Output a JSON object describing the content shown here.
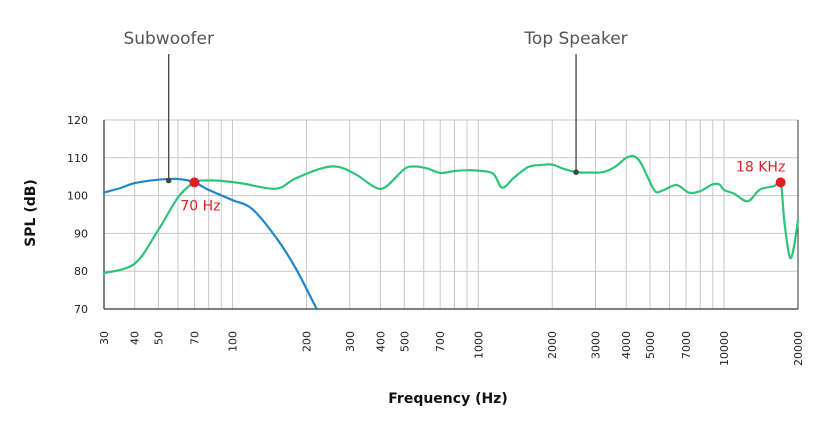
{
  "chart_data": {
    "type": "line",
    "xscale": "log",
    "xlabel": "Frequency (Hz)",
    "ylabel": "SPL (dB)",
    "xlim": [
      30,
      20000
    ],
    "ylim": [
      70,
      120
    ],
    "grid": true,
    "yticks": [
      70,
      80,
      90,
      100,
      110,
      120
    ],
    "xtick_labels": [
      "30",
      "40",
      "50",
      "70",
      "100",
      "200",
      "300",
      "400",
      "500",
      "700",
      "1000",
      "2000",
      "3000",
      "4000",
      "5000",
      "7000",
      "10000",
      "20000"
    ],
    "series": [
      {
        "name": "Subwoofer",
        "color": "#1f87c8",
        "points": [
          [
            30,
            100.8
          ],
          [
            35,
            102
          ],
          [
            40,
            103.3
          ],
          [
            50,
            104.2
          ],
          [
            60,
            104.4
          ],
          [
            70,
            103.5
          ],
          [
            80,
            101.5
          ],
          [
            100,
            98.8
          ],
          [
            120,
            96.5
          ],
          [
            150,
            89
          ],
          [
            180,
            81
          ],
          [
            220,
            70
          ]
        ]
      },
      {
        "name": "Top Speaker",
        "color": "#2fc37a",
        "points": [
          [
            30,
            79.5
          ],
          [
            40,
            82
          ],
          [
            50,
            91
          ],
          [
            60,
            99.5
          ],
          [
            70,
            103.5
          ],
          [
            80,
            104
          ],
          [
            90,
            103.9
          ],
          [
            110,
            103.2
          ],
          [
            150,
            101.8
          ],
          [
            180,
            104.5
          ],
          [
            230,
            107.2
          ],
          [
            270,
            107.6
          ],
          [
            320,
            105.5
          ],
          [
            380,
            102.2
          ],
          [
            420,
            102.3
          ],
          [
            500,
            107
          ],
          [
            550,
            107.7
          ],
          [
            620,
            107.2
          ],
          [
            700,
            106
          ],
          [
            800,
            106.5
          ],
          [
            900,
            106.7
          ],
          [
            1000,
            106.6
          ],
          [
            1150,
            105.8
          ],
          [
            1250,
            102.1
          ],
          [
            1400,
            104.8
          ],
          [
            1600,
            107.6
          ],
          [
            1800,
            108.1
          ],
          [
            2000,
            108.2
          ],
          [
            2200,
            107.2
          ],
          [
            2500,
            106.2
          ],
          [
            2800,
            106.1
          ],
          [
            3200,
            106.2
          ],
          [
            3600,
            107.6
          ],
          [
            4000,
            110
          ],
          [
            4300,
            110.4
          ],
          [
            4600,
            108.5
          ],
          [
            5200,
            101.5
          ],
          [
            5600,
            101.3
          ],
          [
            6400,
            102.8
          ],
          [
            7200,
            100.8
          ],
          [
            8000,
            101.2
          ],
          [
            9000,
            103
          ],
          [
            9600,
            102.9
          ],
          [
            10000,
            101.5
          ],
          [
            11000,
            100.5
          ],
          [
            12500,
            98.5
          ],
          [
            14000,
            101.6
          ],
          [
            16000,
            102.5
          ],
          [
            17000,
            103.5
          ],
          [
            17600,
            93
          ],
          [
            18500,
            83.8
          ],
          [
            19200,
            86
          ],
          [
            20000,
            93.5
          ]
        ]
      }
    ],
    "annotations": [
      {
        "text": "70 Hz",
        "x": 70,
        "y": 103.5,
        "color": "#e02020"
      },
      {
        "text": "18 KHz",
        "x": 17000,
        "y": 103.5,
        "color": "#e02020"
      }
    ],
    "callouts": [
      {
        "text": "Subwoofer",
        "x": 55,
        "y": 104
      },
      {
        "text": "Top Speaker",
        "x": 2500,
        "y": 106.2
      }
    ]
  }
}
